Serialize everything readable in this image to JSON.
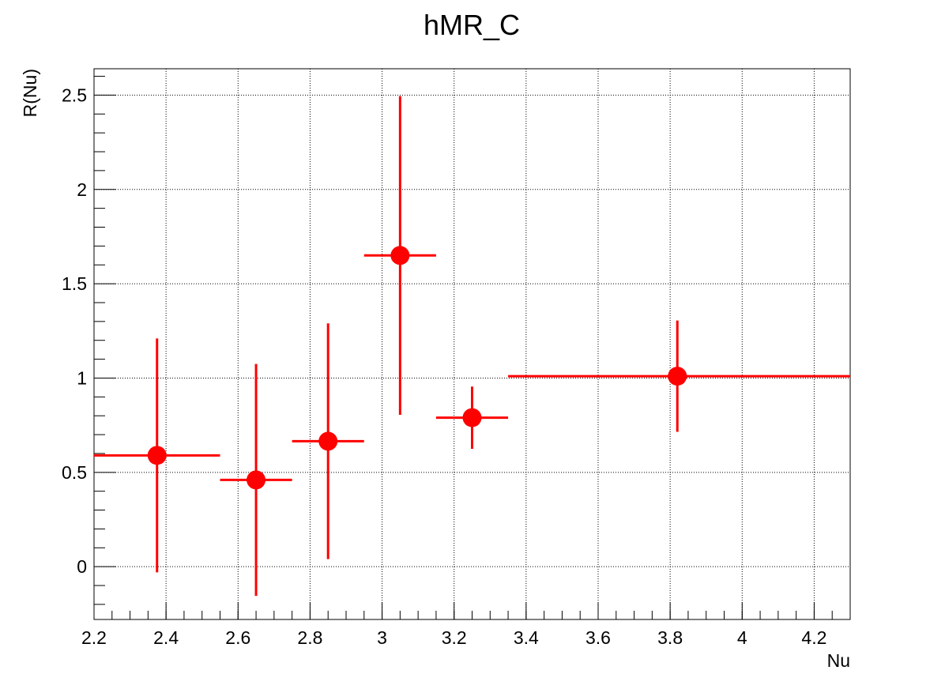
{
  "chart_data": {
    "type": "scatter",
    "title": "hMR_C",
    "xlabel": "Nu",
    "ylabel": "R(Nu)",
    "xlim": [
      2.2,
      4.3
    ],
    "ylim": [
      -0.28,
      2.64
    ],
    "grid": true,
    "x_ticks": [
      {
        "value": 2.2,
        "label": "2.2"
      },
      {
        "value": 2.4,
        "label": "2.4"
      },
      {
        "value": 2.6,
        "label": "2.6"
      },
      {
        "value": 2.8,
        "label": "2.8"
      },
      {
        "value": 3.0,
        "label": "3"
      },
      {
        "value": 3.2,
        "label": "3.2"
      },
      {
        "value": 3.4,
        "label": "3.4"
      },
      {
        "value": 3.6,
        "label": "3.6"
      },
      {
        "value": 3.8,
        "label": "3.8"
      },
      {
        "value": 4.0,
        "label": "4"
      },
      {
        "value": 4.2,
        "label": "4.2"
      }
    ],
    "y_ticks": [
      {
        "value": 0,
        "label": "0"
      },
      {
        "value": 0.5,
        "label": "0.5"
      },
      {
        "value": 1,
        "label": "1"
      },
      {
        "value": 1.5,
        "label": "1.5"
      },
      {
        "value": 2,
        "label": "2"
      },
      {
        "value": 2.5,
        "label": "2.5"
      }
    ],
    "series": [
      {
        "color": "#ff0000",
        "points": [
          {
            "x": 2.375,
            "y": 0.59,
            "x_low": 2.2,
            "x_high": 2.55,
            "y_err": 0.62
          },
          {
            "x": 2.65,
            "y": 0.46,
            "x_low": 2.55,
            "x_high": 2.75,
            "y_err": 0.615
          },
          {
            "x": 2.85,
            "y": 0.665,
            "x_low": 2.75,
            "x_high": 2.95,
            "y_err": 0.625
          },
          {
            "x": 3.05,
            "y": 1.65,
            "x_low": 2.95,
            "x_high": 3.15,
            "y_err": 0.845
          },
          {
            "x": 3.25,
            "y": 0.79,
            "x_low": 3.15,
            "x_high": 3.35,
            "y_err": 0.165
          },
          {
            "x": 3.82,
            "y": 1.01,
            "x_low": 3.35,
            "x_high": 4.3,
            "y_err": 0.295
          }
        ]
      }
    ]
  }
}
